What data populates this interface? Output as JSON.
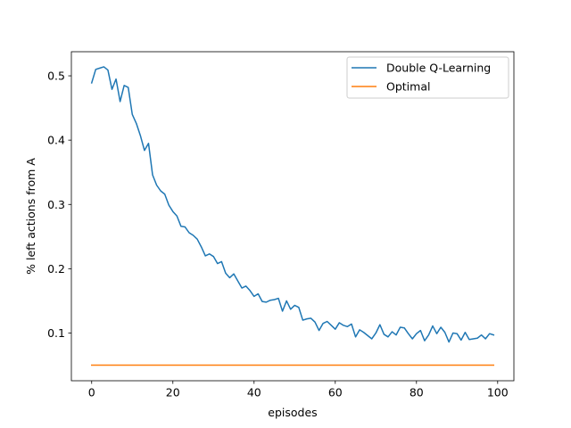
{
  "chart_data": {
    "type": "line",
    "title": "",
    "xlabel": "episodes",
    "ylabel": "% left actions from A",
    "xlim": [
      -5,
      104
    ],
    "ylim": [
      0.0258,
      0.5375
    ],
    "xticks": [
      0,
      20,
      40,
      60,
      80,
      100
    ],
    "xtick_labels": [
      "0",
      "20",
      "40",
      "60",
      "80",
      "100"
    ],
    "yticks": [
      0.1,
      0.2,
      0.3,
      0.4,
      0.5
    ],
    "ytick_labels": [
      "0.1",
      "0.2",
      "0.3",
      "0.4",
      "0.5"
    ],
    "grid": false,
    "legend_position": "top-right",
    "x": [
      0,
      1,
      2,
      3,
      4,
      5,
      6,
      7,
      8,
      9,
      10,
      11,
      12,
      13,
      14,
      15,
      16,
      17,
      18,
      19,
      20,
      21,
      22,
      23,
      24,
      25,
      26,
      27,
      28,
      29,
      30,
      31,
      32,
      33,
      34,
      35,
      36,
      37,
      38,
      39,
      40,
      41,
      42,
      43,
      44,
      45,
      46,
      47,
      48,
      49,
      50,
      51,
      52,
      53,
      54,
      55,
      56,
      57,
      58,
      59,
      60,
      61,
      62,
      63,
      64,
      65,
      66,
      67,
      68,
      69,
      70,
      71,
      72,
      73,
      74,
      75,
      76,
      77,
      78,
      79,
      80,
      81,
      82,
      83,
      84,
      85,
      86,
      87,
      88,
      89,
      90,
      91,
      92,
      93,
      94,
      95,
      96,
      97,
      98,
      99
    ],
    "series": [
      {
        "name": "Double Q-Learning",
        "color": "#1f77b4",
        "values": [
          0.489,
          0.51,
          0.512,
          0.514,
          0.509,
          0.479,
          0.495,
          0.46,
          0.485,
          0.482,
          0.44,
          0.426,
          0.407,
          0.384,
          0.395,
          0.346,
          0.33,
          0.321,
          0.316,
          0.299,
          0.289,
          0.282,
          0.266,
          0.265,
          0.256,
          0.252,
          0.246,
          0.234,
          0.22,
          0.223,
          0.219,
          0.208,
          0.211,
          0.193,
          0.186,
          0.192,
          0.181,
          0.17,
          0.173,
          0.166,
          0.157,
          0.161,
          0.149,
          0.148,
          0.151,
          0.152,
          0.154,
          0.134,
          0.15,
          0.137,
          0.143,
          0.14,
          0.12,
          0.122,
          0.123,
          0.117,
          0.104,
          0.115,
          0.118,
          0.112,
          0.106,
          0.116,
          0.112,
          0.11,
          0.114,
          0.094,
          0.105,
          0.101,
          0.096,
          0.091,
          0.1,
          0.113,
          0.098,
          0.094,
          0.102,
          0.097,
          0.109,
          0.108,
          0.099,
          0.091,
          0.099,
          0.104,
          0.088,
          0.097,
          0.111,
          0.099,
          0.109,
          0.101,
          0.086,
          0.1,
          0.099,
          0.089,
          0.101,
          0.09,
          0.091,
          0.092,
          0.097,
          0.091,
          0.099,
          0.097
        ]
      },
      {
        "name": "Optimal",
        "color": "#ff7f0e",
        "values": [
          0.05,
          0.05,
          0.05,
          0.05,
          0.05,
          0.05,
          0.05,
          0.05,
          0.05,
          0.05,
          0.05,
          0.05,
          0.05,
          0.05,
          0.05,
          0.05,
          0.05,
          0.05,
          0.05,
          0.05,
          0.05,
          0.05,
          0.05,
          0.05,
          0.05,
          0.05,
          0.05,
          0.05,
          0.05,
          0.05,
          0.05,
          0.05,
          0.05,
          0.05,
          0.05,
          0.05,
          0.05,
          0.05,
          0.05,
          0.05,
          0.05,
          0.05,
          0.05,
          0.05,
          0.05,
          0.05,
          0.05,
          0.05,
          0.05,
          0.05,
          0.05,
          0.05,
          0.05,
          0.05,
          0.05,
          0.05,
          0.05,
          0.05,
          0.05,
          0.05,
          0.05,
          0.05,
          0.05,
          0.05,
          0.05,
          0.05,
          0.05,
          0.05,
          0.05,
          0.05,
          0.05,
          0.05,
          0.05,
          0.05,
          0.05,
          0.05,
          0.05,
          0.05,
          0.05,
          0.05,
          0.05,
          0.05,
          0.05,
          0.05,
          0.05,
          0.05,
          0.05,
          0.05,
          0.05,
          0.05,
          0.05,
          0.05,
          0.05,
          0.05,
          0.05,
          0.05,
          0.05,
          0.05,
          0.05,
          0.05
        ]
      }
    ]
  }
}
